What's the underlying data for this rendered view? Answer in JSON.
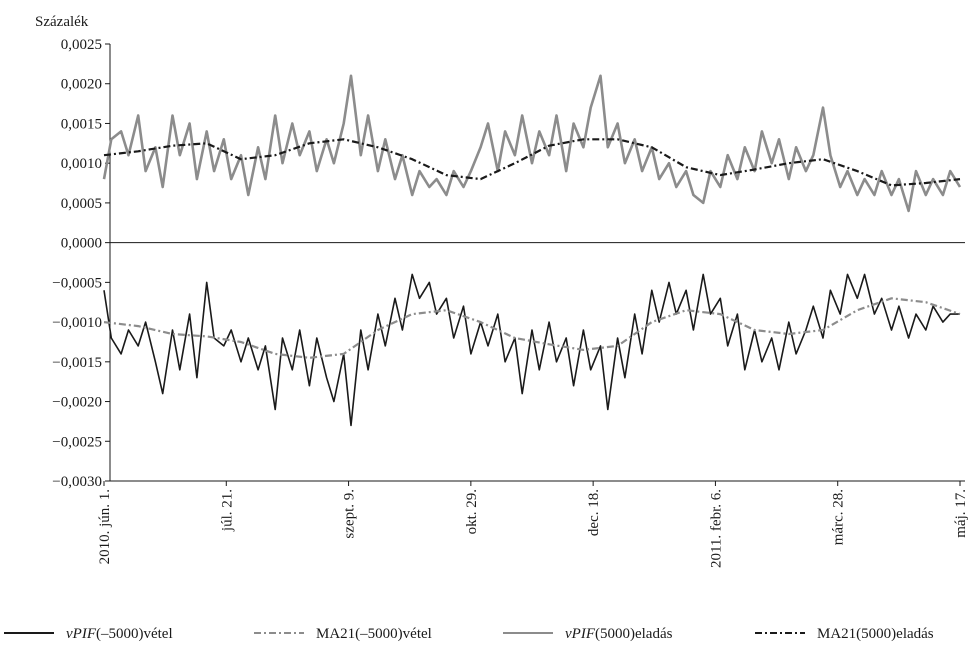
{
  "chart_data": {
    "type": "line",
    "ylabel": "Százalék",
    "ylim": [
      -0.003,
      0.0025
    ],
    "yticks": [
      0.0025,
      0.002,
      0.0015,
      0.001,
      0.0005,
      0.0,
      -0.0005,
      -0.001,
      -0.0015,
      -0.002,
      -0.0025,
      -0.003
    ],
    "ytick_labels": [
      "0,0025",
      "0,0020",
      "0,0015",
      "0,0010",
      "0,0005",
      "0,0000",
      "−0,0005",
      "−0,0010",
      "−0,0015",
      "−0,0020",
      "−0,0025",
      "−0,0030"
    ],
    "x_start": "2010-06-01",
    "x_end": "2011-05-17",
    "xticks": [
      {
        "date": "2010-06-01",
        "label": "2010. jún. 1."
      },
      {
        "date": "2010-07-21",
        "label": "júl. 21."
      },
      {
        "date": "2010-09-09",
        "label": "szept. 9."
      },
      {
        "date": "2010-10-29",
        "label": "okt. 29."
      },
      {
        "date": "2010-12-18",
        "label": "dec. 18."
      },
      {
        "date": "2011-02-06",
        "label": "2011. febr. 6."
      },
      {
        "date": "2011-03-28",
        "label": "márc. 28."
      },
      {
        "date": "2011-05-17",
        "label": "máj. 17."
      }
    ],
    "series": [
      {
        "name": "vPIF(–5000)vétel",
        "name_italic": "vPIF",
        "name_rest": "(–5000)vétel",
        "color": "#1a1a1a",
        "style": "solid",
        "points": [
          [
            "2010-06-01",
            -0.0006
          ],
          [
            "2010-06-04",
            -0.0012
          ],
          [
            "2010-06-08",
            -0.0014
          ],
          [
            "2010-06-11",
            -0.0011
          ],
          [
            "2010-06-15",
            -0.0013
          ],
          [
            "2010-06-18",
            -0.001
          ],
          [
            "2010-06-22",
            -0.0015
          ],
          [
            "2010-06-25",
            -0.0019
          ],
          [
            "2010-06-29",
            -0.0011
          ],
          [
            "2010-07-02",
            -0.0016
          ],
          [
            "2010-07-06",
            -0.0009
          ],
          [
            "2010-07-09",
            -0.0017
          ],
          [
            "2010-07-13",
            -0.0005
          ],
          [
            "2010-07-16",
            -0.0012
          ],
          [
            "2010-07-20",
            -0.0013
          ],
          [
            "2010-07-23",
            -0.0011
          ],
          [
            "2010-07-27",
            -0.0015
          ],
          [
            "2010-07-30",
            -0.0012
          ],
          [
            "2010-08-03",
            -0.0016
          ],
          [
            "2010-08-06",
            -0.0013
          ],
          [
            "2010-08-10",
            -0.0021
          ],
          [
            "2010-08-13",
            -0.0012
          ],
          [
            "2010-08-17",
            -0.0016
          ],
          [
            "2010-08-20",
            -0.0011
          ],
          [
            "2010-08-24",
            -0.0018
          ],
          [
            "2010-08-27",
            -0.0012
          ],
          [
            "2010-08-31",
            -0.0017
          ],
          [
            "2010-09-03",
            -0.002
          ],
          [
            "2010-09-07",
            -0.0014
          ],
          [
            "2010-09-10",
            -0.0023
          ],
          [
            "2010-09-14",
            -0.0011
          ],
          [
            "2010-09-17",
            -0.0016
          ],
          [
            "2010-09-21",
            -0.0009
          ],
          [
            "2010-09-24",
            -0.0013
          ],
          [
            "2010-09-28",
            -0.0007
          ],
          [
            "2010-10-01",
            -0.0011
          ],
          [
            "2010-10-05",
            -0.0004
          ],
          [
            "2010-10-08",
            -0.0007
          ],
          [
            "2010-10-12",
            -0.0005
          ],
          [
            "2010-10-15",
            -0.0009
          ],
          [
            "2010-10-19",
            -0.0007
          ],
          [
            "2010-10-22",
            -0.0012
          ],
          [
            "2010-10-26",
            -0.0008
          ],
          [
            "2010-10-29",
            -0.0014
          ],
          [
            "2010-11-02",
            -0.001
          ],
          [
            "2010-11-05",
            -0.0013
          ],
          [
            "2010-11-09",
            -0.0009
          ],
          [
            "2010-11-12",
            -0.0015
          ],
          [
            "2010-11-16",
            -0.0012
          ],
          [
            "2010-11-19",
            -0.0019
          ],
          [
            "2010-11-23",
            -0.0011
          ],
          [
            "2010-11-26",
            -0.0016
          ],
          [
            "2010-11-30",
            -0.001
          ],
          [
            "2010-12-03",
            -0.0015
          ],
          [
            "2010-12-07",
            -0.0012
          ],
          [
            "2010-12-10",
            -0.0018
          ],
          [
            "2010-12-14",
            -0.0011
          ],
          [
            "2010-12-17",
            -0.0016
          ],
          [
            "2010-12-21",
            -0.0013
          ],
          [
            "2010-12-24",
            -0.0021
          ],
          [
            "2010-12-28",
            -0.0012
          ],
          [
            "2010-12-31",
            -0.0017
          ],
          [
            "2011-01-04",
            -0.0009
          ],
          [
            "2011-01-07",
            -0.0014
          ],
          [
            "2011-01-11",
            -0.0006
          ],
          [
            "2011-01-14",
            -0.001
          ],
          [
            "2011-01-18",
            -0.0005
          ],
          [
            "2011-01-21",
            -0.0009
          ],
          [
            "2011-01-25",
            -0.0006
          ],
          [
            "2011-01-28",
            -0.0011
          ],
          [
            "2011-02-01",
            -0.0004
          ],
          [
            "2011-02-04",
            -0.0009
          ],
          [
            "2011-02-08",
            -0.0007
          ],
          [
            "2011-02-11",
            -0.0013
          ],
          [
            "2011-02-15",
            -0.0009
          ],
          [
            "2011-02-18",
            -0.0016
          ],
          [
            "2011-02-22",
            -0.0011
          ],
          [
            "2011-02-25",
            -0.0015
          ],
          [
            "2011-03-01",
            -0.0012
          ],
          [
            "2011-03-04",
            -0.0016
          ],
          [
            "2011-03-08",
            -0.001
          ],
          [
            "2011-03-11",
            -0.0014
          ],
          [
            "2011-03-15",
            -0.0011
          ],
          [
            "2011-03-18",
            -0.0008
          ],
          [
            "2011-03-22",
            -0.0012
          ],
          [
            "2011-03-25",
            -0.0006
          ],
          [
            "2011-03-29",
            -0.0009
          ],
          [
            "2011-04-01",
            -0.0004
          ],
          [
            "2011-04-05",
            -0.0007
          ],
          [
            "2011-04-08",
            -0.0004
          ],
          [
            "2011-04-12",
            -0.0009
          ],
          [
            "2011-04-15",
            -0.0007
          ],
          [
            "2011-04-19",
            -0.0011
          ],
          [
            "2011-04-22",
            -0.0008
          ],
          [
            "2011-04-26",
            -0.0012
          ],
          [
            "2011-04-29",
            -0.0009
          ],
          [
            "2011-05-03",
            -0.0011
          ],
          [
            "2011-05-06",
            -0.0008
          ],
          [
            "2011-05-10",
            -0.001
          ],
          [
            "2011-05-13",
            -0.0009
          ],
          [
            "2011-05-17",
            -0.0009
          ]
        ]
      },
      {
        "name": "MA21(–5000)vétel",
        "color": "#8c8c8c",
        "style": "dashdot",
        "points": [
          [
            "2010-06-01",
            -0.001
          ],
          [
            "2010-06-15",
            -0.00105
          ],
          [
            "2010-06-29",
            -0.00115
          ],
          [
            "2010-07-13",
            -0.00118
          ],
          [
            "2010-07-27",
            -0.00125
          ],
          [
            "2010-08-10",
            -0.0014
          ],
          [
            "2010-08-24",
            -0.00145
          ],
          [
            "2010-09-07",
            -0.0014
          ],
          [
            "2010-09-21",
            -0.0011
          ],
          [
            "2010-10-05",
            -0.0009
          ],
          [
            "2010-10-19",
            -0.00085
          ],
          [
            "2010-11-02",
            -0.001
          ],
          [
            "2010-11-16",
            -0.0012
          ],
          [
            "2010-11-30",
            -0.00128
          ],
          [
            "2010-12-14",
            -0.00135
          ],
          [
            "2010-12-28",
            -0.0013
          ],
          [
            "2011-01-11",
            -0.001
          ],
          [
            "2011-01-25",
            -0.00085
          ],
          [
            "2011-02-08",
            -0.0009
          ],
          [
            "2011-02-22",
            -0.0011
          ],
          [
            "2011-03-08",
            -0.00115
          ],
          [
            "2011-03-22",
            -0.0011
          ],
          [
            "2011-04-05",
            -0.00085
          ],
          [
            "2011-04-19",
            -0.0007
          ],
          [
            "2011-05-03",
            -0.00075
          ],
          [
            "2011-05-17",
            -0.0009
          ]
        ]
      },
      {
        "name": "vPIF(5000)eladás",
        "name_italic": "vPIF",
        "name_rest": "(5000)eladás",
        "color": "#8c8c8c",
        "style": "solid",
        "points": [
          [
            "2010-06-01",
            0.0008
          ],
          [
            "2010-06-04",
            0.0013
          ],
          [
            "2010-06-08",
            0.0014
          ],
          [
            "2010-06-11",
            0.0011
          ],
          [
            "2010-06-15",
            0.0016
          ],
          [
            "2010-06-18",
            0.0009
          ],
          [
            "2010-06-22",
            0.0012
          ],
          [
            "2010-06-25",
            0.0007
          ],
          [
            "2010-06-29",
            0.0016
          ],
          [
            "2010-07-02",
            0.0011
          ],
          [
            "2010-07-06",
            0.0015
          ],
          [
            "2010-07-09",
            0.0008
          ],
          [
            "2010-07-13",
            0.0014
          ],
          [
            "2010-07-16",
            0.0009
          ],
          [
            "2010-07-20",
            0.0013
          ],
          [
            "2010-07-23",
            0.0008
          ],
          [
            "2010-07-27",
            0.0011
          ],
          [
            "2010-07-30",
            0.0006
          ],
          [
            "2010-08-03",
            0.0012
          ],
          [
            "2010-08-06",
            0.0008
          ],
          [
            "2010-08-10",
            0.0016
          ],
          [
            "2010-08-13",
            0.001
          ],
          [
            "2010-08-17",
            0.0015
          ],
          [
            "2010-08-20",
            0.0011
          ],
          [
            "2010-08-24",
            0.0014
          ],
          [
            "2010-08-27",
            0.0009
          ],
          [
            "2010-08-31",
            0.0013
          ],
          [
            "2010-09-03",
            0.001
          ],
          [
            "2010-09-07",
            0.0015
          ],
          [
            "2010-09-10",
            0.0021
          ],
          [
            "2010-09-14",
            0.0011
          ],
          [
            "2010-09-17",
            0.0016
          ],
          [
            "2010-09-21",
            0.0009
          ],
          [
            "2010-09-24",
            0.0013
          ],
          [
            "2010-09-28",
            0.0008
          ],
          [
            "2010-10-01",
            0.0011
          ],
          [
            "2010-10-05",
            0.0006
          ],
          [
            "2010-10-08",
            0.0009
          ],
          [
            "2010-10-12",
            0.0007
          ],
          [
            "2010-10-15",
            0.0008
          ],
          [
            "2010-10-19",
            0.0006
          ],
          [
            "2010-10-22",
            0.0009
          ],
          [
            "2010-10-26",
            0.0007
          ],
          [
            "2010-10-29",
            0.0009
          ],
          [
            "2010-11-02",
            0.0012
          ],
          [
            "2010-11-05",
            0.0015
          ],
          [
            "2010-11-09",
            0.0009
          ],
          [
            "2010-11-12",
            0.0014
          ],
          [
            "2010-11-16",
            0.0011
          ],
          [
            "2010-11-19",
            0.0016
          ],
          [
            "2010-11-23",
            0.001
          ],
          [
            "2010-11-26",
            0.0014
          ],
          [
            "2010-11-30",
            0.0011
          ],
          [
            "2010-12-03",
            0.0016
          ],
          [
            "2010-12-07",
            0.0009
          ],
          [
            "2010-12-10",
            0.0015
          ],
          [
            "2010-12-14",
            0.0012
          ],
          [
            "2010-12-17",
            0.0017
          ],
          [
            "2010-12-21",
            0.0021
          ],
          [
            "2010-12-24",
            0.0012
          ],
          [
            "2010-12-28",
            0.0015
          ],
          [
            "2010-12-31",
            0.001
          ],
          [
            "2011-01-04",
            0.0013
          ],
          [
            "2011-01-07",
            0.0009
          ],
          [
            "2011-01-11",
            0.0012
          ],
          [
            "2011-01-14",
            0.0008
          ],
          [
            "2011-01-18",
            0.001
          ],
          [
            "2011-01-21",
            0.0007
          ],
          [
            "2011-01-25",
            0.0009
          ],
          [
            "2011-01-28",
            0.0006
          ],
          [
            "2011-02-01",
            0.0005
          ],
          [
            "2011-02-04",
            0.0009
          ],
          [
            "2011-02-08",
            0.0007
          ],
          [
            "2011-02-11",
            0.0011
          ],
          [
            "2011-02-15",
            0.0008
          ],
          [
            "2011-02-18",
            0.0012
          ],
          [
            "2011-02-22",
            0.0009
          ],
          [
            "2011-02-25",
            0.0014
          ],
          [
            "2011-03-01",
            0.001
          ],
          [
            "2011-03-04",
            0.0013
          ],
          [
            "2011-03-08",
            0.0008
          ],
          [
            "2011-03-11",
            0.0012
          ],
          [
            "2011-03-15",
            0.0009
          ],
          [
            "2011-03-18",
            0.0011
          ],
          [
            "2011-03-22",
            0.0017
          ],
          [
            "2011-03-25",
            0.0011
          ],
          [
            "2011-03-29",
            0.0007
          ],
          [
            "2011-04-01",
            0.0009
          ],
          [
            "2011-04-05",
            0.0006
          ],
          [
            "2011-04-08",
            0.0008
          ],
          [
            "2011-04-12",
            0.0006
          ],
          [
            "2011-04-15",
            0.0009
          ],
          [
            "2011-04-19",
            0.0006
          ],
          [
            "2011-04-22",
            0.0008
          ],
          [
            "2011-04-26",
            0.0004
          ],
          [
            "2011-04-29",
            0.0009
          ],
          [
            "2011-05-03",
            0.0006
          ],
          [
            "2011-05-06",
            0.0008
          ],
          [
            "2011-05-10",
            0.0006
          ],
          [
            "2011-05-13",
            0.0009
          ],
          [
            "2011-05-17",
            0.0007
          ]
        ]
      },
      {
        "name": "MA21(5000)eladás",
        "color": "#1a1a1a",
        "style": "dashdot",
        "points": [
          [
            "2010-06-01",
            0.0011
          ],
          [
            "2010-06-15",
            0.00115
          ],
          [
            "2010-06-29",
            0.00122
          ],
          [
            "2010-07-13",
            0.00125
          ],
          [
            "2010-07-27",
            0.00105
          ],
          [
            "2010-08-10",
            0.0011
          ],
          [
            "2010-08-24",
            0.00125
          ],
          [
            "2010-09-07",
            0.0013
          ],
          [
            "2010-09-21",
            0.0012
          ],
          [
            "2010-10-05",
            0.00105
          ],
          [
            "2010-10-19",
            0.00085
          ],
          [
            "2010-11-02",
            0.0008
          ],
          [
            "2010-11-16",
            0.001
          ],
          [
            "2010-11-30",
            0.00122
          ],
          [
            "2010-12-14",
            0.0013
          ],
          [
            "2010-12-28",
            0.0013
          ],
          [
            "2011-01-11",
            0.0012
          ],
          [
            "2011-01-25",
            0.00095
          ],
          [
            "2011-02-08",
            0.00085
          ],
          [
            "2011-02-22",
            0.00092
          ],
          [
            "2011-03-08",
            0.001
          ],
          [
            "2011-03-22",
            0.00105
          ],
          [
            "2011-04-05",
            0.0009
          ],
          [
            "2011-04-19",
            0.00072
          ],
          [
            "2011-05-03",
            0.00075
          ],
          [
            "2011-05-17",
            0.0008
          ]
        ]
      }
    ],
    "legend_position": "bottom"
  }
}
